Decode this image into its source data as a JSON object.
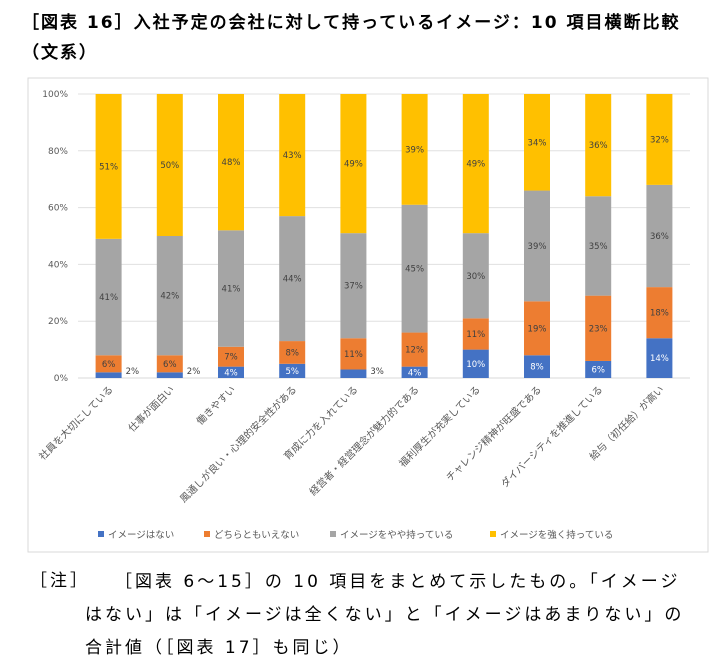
{
  "header": {
    "title": "［図表 16］入社予定の会社に対して持っているイメージ：10 項目横断比較（文系）"
  },
  "chart_data": {
    "type": "stacked_bar",
    "categories": [
      "社員を大切にしている",
      "仕事が面白い",
      "働きやすい",
      "風通しが良い・心理的安全性がある",
      "育成に力を入れている",
      "経営者・経営理念が魅力的である",
      "福利厚生が充実している",
      "チャレンジ精神が旺盛である",
      "ダイバーシティを推進している",
      "給与（初任給）が高い"
    ],
    "series": [
      {
        "name": "イメージはない",
        "color": "#4472c4",
        "values": [
          2,
          2,
          4,
          5,
          3,
          4,
          10,
          8,
          6,
          14
        ],
        "value_labels": [
          "2%",
          "2%",
          "4%",
          "5%",
          "3%",
          "4%",
          "10%",
          "8%",
          "6%",
          "14%"
        ]
      },
      {
        "name": "どちらともいえない",
        "color": "#ed7d31",
        "values": [
          6,
          6,
          7,
          8,
          11,
          12,
          11,
          19,
          23,
          18
        ],
        "value_labels": [
          "6%",
          "6%",
          "7%",
          "8%",
          "11%",
          "12%",
          "11%",
          "19%",
          "23%",
          "18%"
        ]
      },
      {
        "name": "イメージをやや持っている",
        "color": "#a5a5a5",
        "values": [
          41,
          42,
          41,
          44,
          37,
          45,
          30,
          39,
          35,
          36
        ],
        "value_labels": [
          "41%",
          "42%",
          "41%",
          "44%",
          "37%",
          "45%",
          "30%",
          "39%",
          "35%",
          "36%"
        ]
      },
      {
        "name": "イメージを強く持っている",
        "color": "#ffc000",
        "values": [
          51,
          50,
          48,
          43,
          49,
          39,
          49,
          34,
          36,
          32
        ],
        "value_labels": [
          "51%",
          "50%",
          "48%",
          "43%",
          "49%",
          "39%",
          "49%",
          "34%",
          "36%",
          "32%"
        ]
      }
    ],
    "ylim": [
      0,
      100
    ],
    "yticks": [
      {
        "value": 0,
        "label": "0%"
      },
      {
        "value": 20,
        "label": "20%"
      },
      {
        "value": 40,
        "label": "40%"
      },
      {
        "value": 60,
        "label": "60%"
      },
      {
        "value": 80,
        "label": "80%"
      },
      {
        "value": 100,
        "label": "100%"
      }
    ],
    "legend": "bottom"
  },
  "note": {
    "label": "［注］",
    "text": "［図表 6～15］の 10 項目をまとめて示したもの。「イメージはない」は「イメージは全くない」と「イメージはあまりない」の合計値（［図表 17］も同じ）"
  }
}
